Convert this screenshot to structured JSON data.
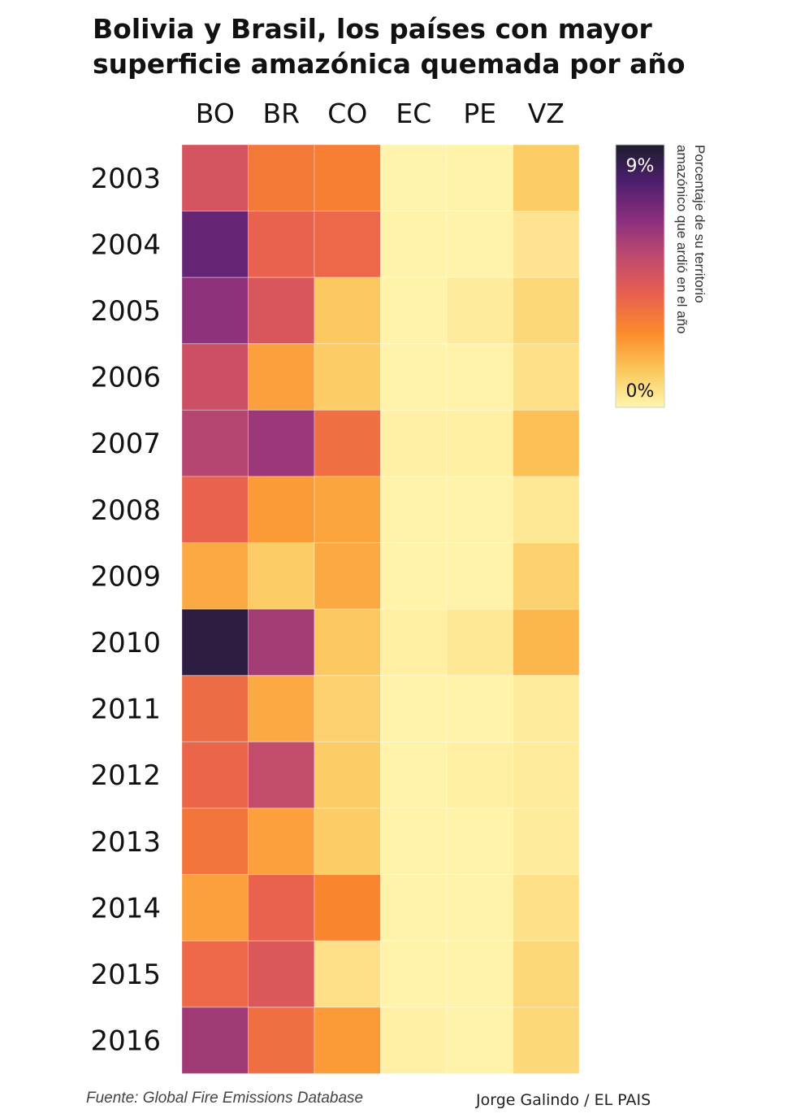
{
  "title": {
    "line1": "Bolivia y Brasil, los países con mayor",
    "line2": "superficie amazónica quemada por año"
  },
  "legend": {
    "title_line1": "Porcentaje de su territorio",
    "title_line2": "amazónico que ardió en el año",
    "max_label": "9%",
    "min_label": "0%"
  },
  "source": "Fuente: Global Fire Emissions Database",
  "credit": "Jorge Galindo / EL PAIS",
  "chart_data": {
    "type": "heatmap",
    "title": "Bolivia y Brasil, los países con mayor superficie amazónica quemada por año",
    "x_categories": [
      "BO",
      "BR",
      "CO",
      "EC",
      "PE",
      "VZ"
    ],
    "y_categories": [
      "2003",
      "2004",
      "2005",
      "2006",
      "2007",
      "2008",
      "2009",
      "2010",
      "2011",
      "2012",
      "2013",
      "2014",
      "2015",
      "2016"
    ],
    "value_range": [
      0,
      9
    ],
    "unit": "%",
    "colorscale": [
      "#fff6b0",
      "#fbc65a",
      "#fb8a2a",
      "#e8604f",
      "#c04a6e",
      "#8a2f7e",
      "#4e1f6e",
      "#1c1c2c"
    ],
    "values": [
      [
        4.5,
        3.1,
        2.9,
        0.05,
        0.1,
        1.1
      ],
      [
        7.2,
        3.8,
        3.6,
        0.1,
        0.1,
        0.5
      ],
      [
        6.3,
        4.4,
        1.2,
        0.1,
        0.3,
        0.8
      ],
      [
        4.8,
        2.1,
        1.1,
        0.1,
        0.1,
        0.6
      ],
      [
        5.4,
        6.0,
        3.4,
        0.15,
        0.2,
        1.4
      ],
      [
        3.8,
        2.2,
        2.0,
        0.1,
        0.1,
        0.4
      ],
      [
        1.9,
        1.1,
        1.9,
        0.1,
        0.1,
        1.0
      ],
      [
        8.6,
        5.8,
        1.2,
        0.2,
        0.4,
        1.6
      ],
      [
        3.5,
        1.9,
        1.0,
        0.1,
        0.1,
        0.3
      ],
      [
        3.7,
        5.0,
        1.1,
        0.1,
        0.2,
        0.3
      ],
      [
        3.2,
        2.1,
        1.1,
        0.1,
        0.1,
        0.3
      ],
      [
        2.1,
        3.8,
        2.7,
        0.1,
        0.1,
        0.6
      ],
      [
        3.6,
        4.3,
        0.6,
        0.1,
        0.1,
        0.8
      ],
      [
        5.9,
        3.4,
        2.2,
        0.15,
        0.1,
        0.8
      ]
    ]
  }
}
